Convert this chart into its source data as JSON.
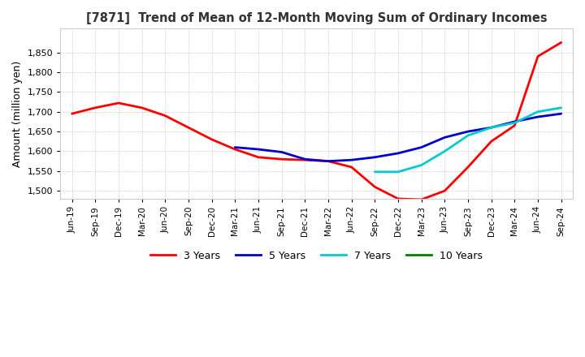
{
  "title": "[7871]  Trend of Mean of 12-Month Moving Sum of Ordinary Incomes",
  "ylabel": "Amount (million yen)",
  "ylim": [
    1480,
    1910
  ],
  "yticks": [
    1500,
    1550,
    1600,
    1650,
    1700,
    1750,
    1800,
    1850
  ],
  "background_color": "#ffffff",
  "plot_bg_color": "#ffffff",
  "grid_color": "#aaaaaa",
  "lines": {
    "3 Years": {
      "color": "#ff0000",
      "data": {
        "x": [
          0,
          1,
          2,
          3,
          4,
          5,
          6,
          7,
          8,
          9,
          10,
          11,
          12,
          13,
          14,
          15,
          16,
          17,
          18,
          19,
          20,
          21
        ],
        "y": [
          1695,
          1710,
          1722,
          1710,
          1690,
          1660,
          1630,
          1605,
          1585,
          1580,
          1578,
          1575,
          1560,
          1510,
          1480,
          1478,
          1500,
          1560,
          1625,
          1665,
          1840,
          1875
        ]
      }
    },
    "5 Years": {
      "color": "#0000cc",
      "data": {
        "x": [
          7,
          8,
          9,
          10,
          11,
          12,
          13,
          14,
          15,
          16,
          17,
          18,
          19,
          20,
          21
        ],
        "y": [
          1610,
          1605,
          1598,
          1580,
          1575,
          1578,
          1585,
          1595,
          1610,
          1635,
          1650,
          1660,
          1675,
          1687,
          1695
        ]
      }
    },
    "7 Years": {
      "color": "#00cccc",
      "data": {
        "x": [
          13,
          14,
          15,
          16,
          17,
          18,
          19,
          20,
          21
        ],
        "y": [
          1548,
          1548,
          1565,
          1600,
          1640,
          1660,
          1672,
          1700,
          1710
        ]
      }
    },
    "10 Years": {
      "color": "#008000",
      "data": {
        "x": [],
        "y": []
      }
    }
  },
  "x_labels": [
    "Jun-19",
    "Sep-19",
    "Dec-19",
    "Mar-20",
    "Jun-20",
    "Sep-20",
    "Dec-20",
    "Mar-21",
    "Jun-21",
    "Sep-21",
    "Dec-21",
    "Mar-22",
    "Jun-22",
    "Sep-22",
    "Dec-22",
    "Mar-23",
    "Jun-23",
    "Sep-23",
    "Dec-23",
    "Mar-24",
    "Jun-24",
    "Sep-24"
  ],
  "legend_labels": [
    "3 Years",
    "5 Years",
    "7 Years",
    "10 Years"
  ],
  "legend_colors": [
    "#ff0000",
    "#0000cc",
    "#00cccc",
    "#008000"
  ]
}
